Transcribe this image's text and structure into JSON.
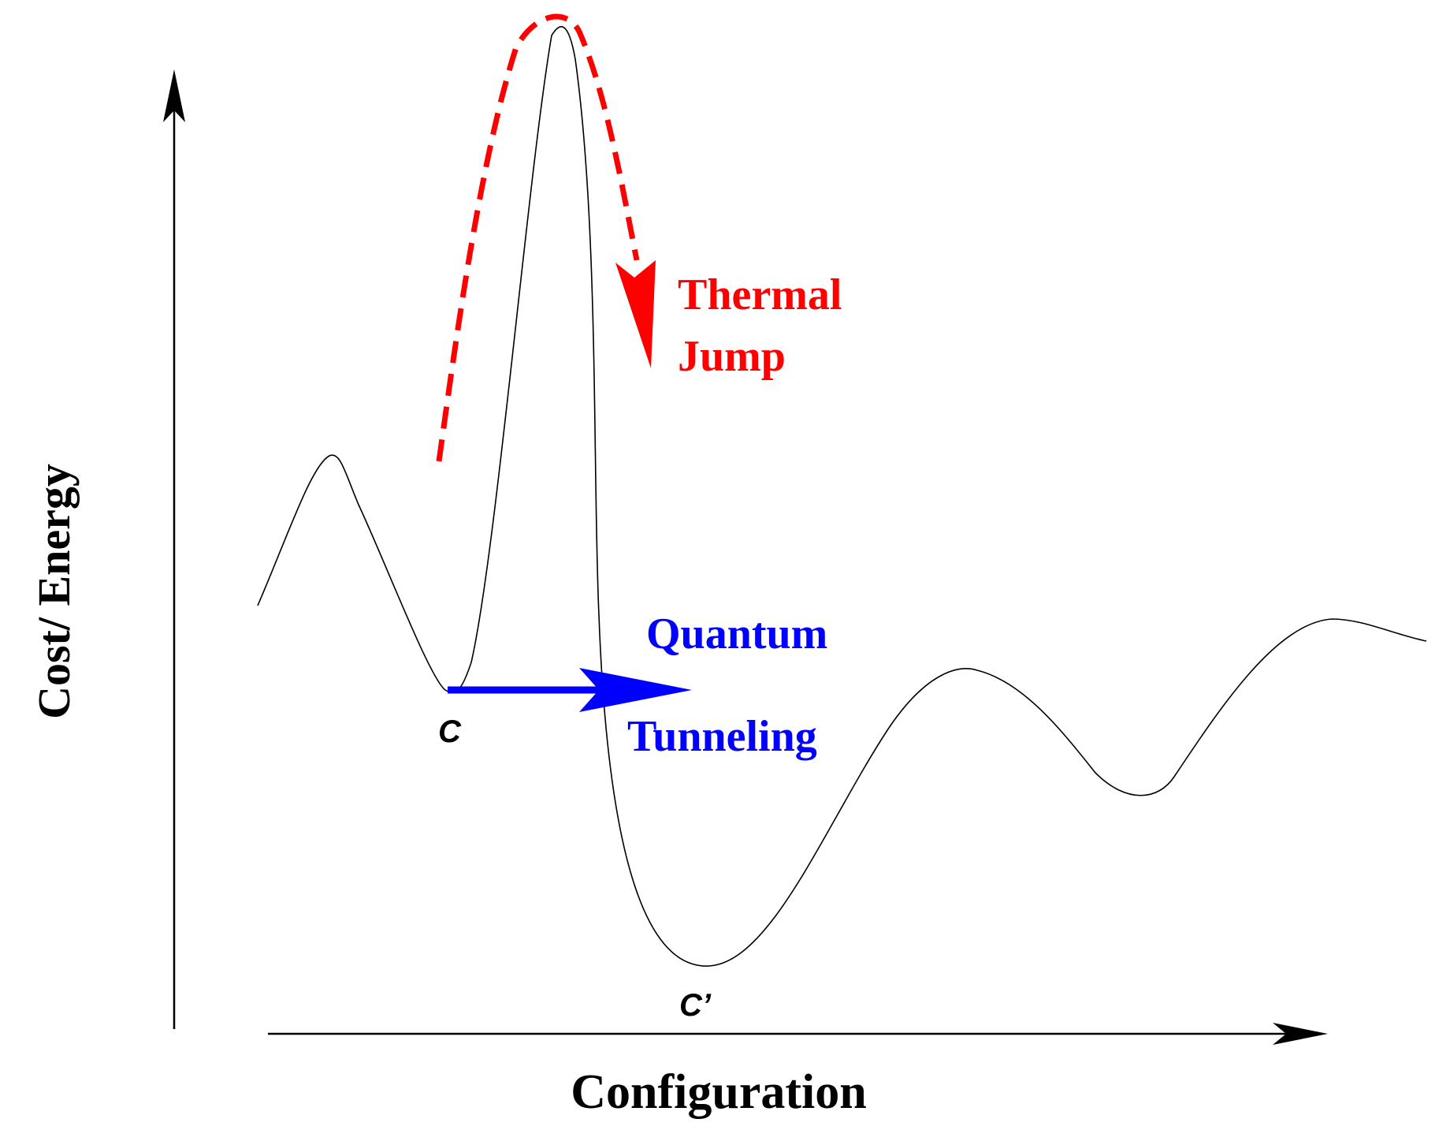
{
  "axes": {
    "y_label": "Cost/ Energy",
    "x_label": "Configuration"
  },
  "points": {
    "start_label": "C",
    "end_label": "C’"
  },
  "thermal": {
    "line1": "Thermal",
    "line2": "Jump",
    "color": "#ff0000"
  },
  "quantum": {
    "line1": "Quantum",
    "line2": "Tunneling",
    "color": "#0000ff"
  },
  "curve_color": "#000000"
}
